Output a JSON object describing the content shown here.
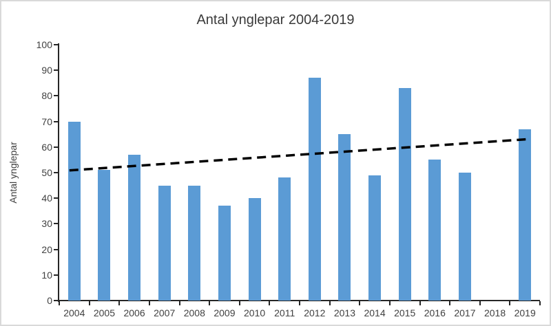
{
  "chart_data": {
    "type": "bar",
    "title": "Antal ynglepar 2004-2019",
    "ylabel": "Antal ynglepar",
    "xlabel": "",
    "categories": [
      "2004",
      "2005",
      "2006",
      "2007",
      "2008",
      "2009",
      "2010",
      "2011",
      "2012",
      "2013",
      "2014",
      "2015",
      "2016",
      "2017",
      "2018",
      "2019"
    ],
    "values": [
      70,
      51,
      57,
      45,
      45,
      37,
      40,
      48,
      87,
      65,
      49,
      83,
      55,
      50,
      0,
      67
    ],
    "ylim": [
      0,
      100
    ],
    "yticks": [
      0,
      10,
      20,
      30,
      40,
      50,
      60,
      70,
      80,
      90,
      100
    ],
    "grid": false,
    "legend": "none",
    "bar_color": "#5B9BD5",
    "axis_color": "#262626",
    "label_color": "#404040",
    "trendline": {
      "type": "linear",
      "style": "dashed",
      "color": "#000000",
      "start_value": 51,
      "end_value": 63
    }
  },
  "frame": {
    "border_color": "#d9d9d9",
    "background": "#ffffff"
  }
}
